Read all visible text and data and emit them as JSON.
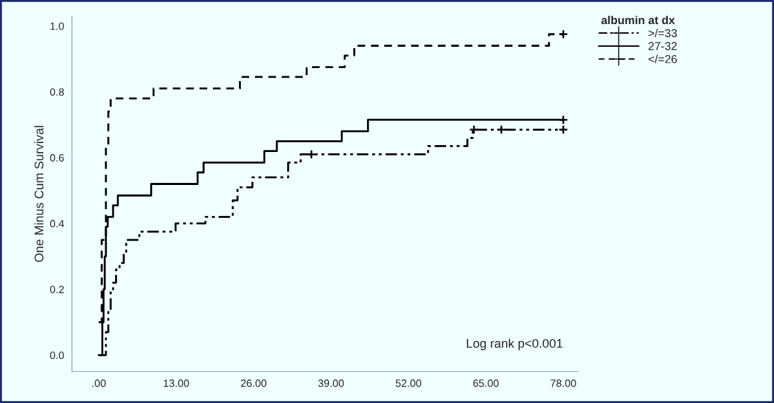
{
  "chart_data": {
    "type": "step",
    "ylabel": "One Minus Cum Survival",
    "legend_title": "albumin at dx",
    "legend": "top right",
    "grid": false,
    "xlim": [
      -4.5,
      80.5
    ],
    "ylim": [
      -0.05,
      1.03
    ],
    "xticks": [
      {
        "value": 0,
        "label": ".00"
      },
      {
        "value": 13,
        "label": "13.00"
      },
      {
        "value": 26,
        "label": "26.00"
      },
      {
        "value": 39,
        "label": "39.00"
      },
      {
        "value": 52,
        "label": "52.00"
      },
      {
        "value": 65,
        "label": "65.00"
      },
      {
        "value": 78,
        "label": "78.00"
      }
    ],
    "yticks": [
      {
        "value": 0,
        "label": "0.0"
      },
      {
        "value": 0.2,
        "label": "0.2"
      },
      {
        "value": 0.4,
        "label": "0.4"
      },
      {
        "value": 0.6,
        "label": "0.6"
      },
      {
        "value": 0.8,
        "label": "0.8"
      },
      {
        "value": 1,
        "label": "1.0"
      }
    ],
    "annotations": [
      "Log rank p<0.001"
    ],
    "series": [
      {
        "name": ">/=33",
        "color": "#000000",
        "line_style": "dotted",
        "x": [
          0,
          1.2,
          1.6,
          2.0,
          2.4,
          2.9,
          3.5,
          4.2,
          4.6,
          6.8,
          12.9,
          17.9,
          22.5,
          23.3,
          25.8,
          31.8,
          33.9,
          55.3,
          61.9,
          62.8,
          78
        ],
        "values": [
          0,
          0.07,
          0.14,
          0.2,
          0.22,
          0.26,
          0.28,
          0.31,
          0.35,
          0.375,
          0.4,
          0.42,
          0.47,
          0.51,
          0.54,
          0.585,
          0.61,
          0.635,
          0.66,
          0.685,
          0.685
        ]
      },
      {
        "name": "27-32",
        "color": "#000000",
        "line_style": "solid",
        "x": [
          0,
          0.6,
          0.8,
          1.0,
          1.2,
          1.5,
          2.4,
          3.2,
          8.8,
          16.6,
          17.6,
          27.8,
          29.9,
          40.8,
          45.2,
          78
        ],
        "values": [
          0,
          0.1,
          0.2,
          0.3,
          0.39,
          0.42,
          0.455,
          0.485,
          0.52,
          0.555,
          0.585,
          0.62,
          0.65,
          0.68,
          0.715,
          0.715
        ]
      },
      {
        "name": "</=26",
        "color": "#000000",
        "line_style": "dashed",
        "x": [
          0,
          0.5,
          1.2,
          1.6,
          2.0,
          9.2,
          23.7,
          34.9,
          41.3,
          42.9,
          75.6,
          78
        ],
        "values": [
          0.1,
          0.35,
          0.63,
          0.74,
          0.78,
          0.81,
          0.845,
          0.875,
          0.91,
          0.94,
          0.975,
          0.975
        ]
      },
      {
        "color": "#000000",
        "type": "scatter",
        "marker": "cross",
        "x": [
          35.7,
          63.0,
          67.6,
          78
        ],
        "values": [
          0.61,
          0.685,
          0.685,
          0.685
        ]
      },
      {
        "color": "#000000",
        "type": "scatter",
        "marker": "cross",
        "x": [
          78
        ],
        "values": [
          0.715
        ]
      },
      {
        "color": "#000000",
        "type": "scatter",
        "marker": "cross",
        "x": [
          78
        ],
        "values": [
          0.975
        ]
      }
    ]
  }
}
